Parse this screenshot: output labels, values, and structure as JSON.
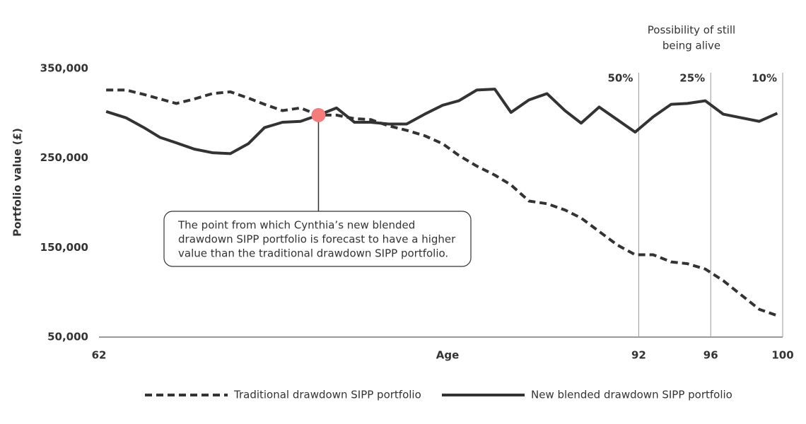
{
  "chart_data": {
    "type": "line",
    "x_label": "Age",
    "y_label": "Portfolio value (£)",
    "x": [
      62.4,
      63.5,
      64.5,
      65.4,
      66.3,
      67.3,
      68.3,
      69.3,
      70.3,
      71.2,
      72.2,
      73.2,
      74.2,
      75.2,
      76.2,
      77.1,
      78.1,
      79.1,
      80.1,
      81.1,
      82.0,
      83.0,
      84.0,
      84.9,
      85.9,
      86.9,
      87.9,
      88.8,
      89.8,
      90.8,
      91.8,
      92.8,
      93.8,
      94.7,
      95.7,
      96.7,
      97.7,
      98.7,
      99.7
    ],
    "series": [
      {
        "name": "Traditional drawdown SIPP portfolio",
        "color": "#333333",
        "dash": true,
        "values": [
          326000,
          326000,
          321000,
          316000,
          311000,
          316000,
          322000,
          324000,
          317000,
          310000,
          303000,
          306000,
          298000,
          298000,
          294000,
          293000,
          286000,
          281000,
          275000,
          266000,
          253000,
          241000,
          231000,
          220000,
          202000,
          199000,
          192000,
          183000,
          168000,
          153000,
          142000,
          142000,
          134000,
          132000,
          126000,
          113000,
          97000,
          81000,
          74000
        ]
      },
      {
        "name": "New blended drawdown SIPP portfolio",
        "color": "#333333",
        "dash": false,
        "values": [
          302000,
          295000,
          284000,
          273000,
          267000,
          260000,
          256000,
          255000,
          266000,
          284000,
          290000,
          291000,
          298000,
          306000,
          290000,
          290000,
          288000,
          288000,
          299000,
          309000,
          314000,
          326000,
          327000,
          301000,
          315000,
          322000,
          303000,
          289000,
          307000,
          293000,
          279000,
          296000,
          310000,
          311000,
          314000,
          299000,
          295000,
          291000,
          300000
        ]
      }
    ],
    "xlim": [
      62,
      100
    ],
    "xticks": [
      62,
      92,
      96,
      100
    ],
    "ylim": [
      50000,
      350000
    ],
    "yticks": [
      {
        "value": 50000,
        "label": "50,000"
      },
      {
        "value": 150000,
        "label": "150,000"
      },
      {
        "value": 250000,
        "label": "250,000"
      },
      {
        "value": 350000,
        "label": "350,000"
      }
    ],
    "crossover": {
      "x": 74.2,
      "y": 298000,
      "color": "#f47c7c",
      "text": [
        "The point from which Cynthia’s new blended",
        "drawdown SIPP portfolio is forecast to have a higher",
        "value than the traditional drawdown SIPP portfolio."
      ]
    },
    "survival_title": [
      "Possibility of still",
      "being alive"
    ],
    "survival": [
      {
        "x": 92,
        "label": "50%"
      },
      {
        "x": 96,
        "label": "25%"
      },
      {
        "x": 100,
        "label": "10%"
      }
    ]
  }
}
